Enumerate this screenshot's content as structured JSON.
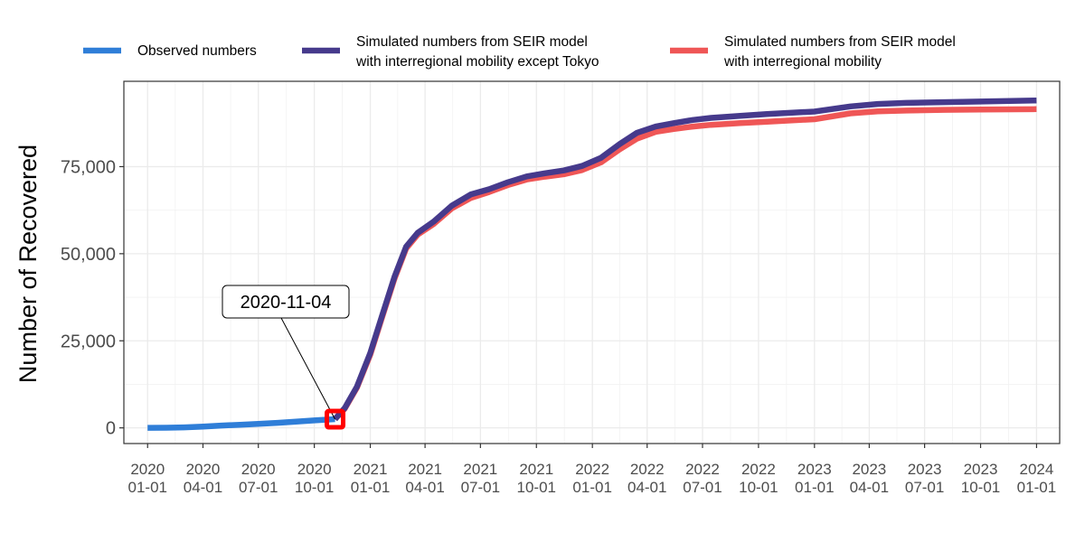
{
  "chart_data": {
    "type": "line",
    "title": "",
    "xlabel": "",
    "ylabel": "Number of Recovered",
    "ylim": [
      -4500,
      99500
    ],
    "xlim": [
      "2019-11-23",
      "2024-02-08"
    ],
    "grid": true,
    "legend_position": "top",
    "x_ticks": [
      {
        "date": "2020-01-01",
        "line1": "2020",
        "line2": "01-01"
      },
      {
        "date": "2020-04-01",
        "line1": "2020",
        "line2": "04-01"
      },
      {
        "date": "2020-07-01",
        "line1": "2020",
        "line2": "07-01"
      },
      {
        "date": "2020-10-01",
        "line1": "2020",
        "line2": "10-01"
      },
      {
        "date": "2021-01-01",
        "line1": "2021",
        "line2": "01-01"
      },
      {
        "date": "2021-04-01",
        "line1": "2021",
        "line2": "04-01"
      },
      {
        "date": "2021-07-01",
        "line1": "2021",
        "line2": "07-01"
      },
      {
        "date": "2021-10-01",
        "line1": "2021",
        "line2": "10-01"
      },
      {
        "date": "2022-01-01",
        "line1": "2022",
        "line2": "01-01"
      },
      {
        "date": "2022-04-01",
        "line1": "2022",
        "line2": "04-01"
      },
      {
        "date": "2022-07-01",
        "line1": "2022",
        "line2": "07-01"
      },
      {
        "date": "2022-10-01",
        "line1": "2022",
        "line2": "10-01"
      },
      {
        "date": "2023-01-01",
        "line1": "2023",
        "line2": "01-01"
      },
      {
        "date": "2023-04-01",
        "line1": "2023",
        "line2": "04-01"
      },
      {
        "date": "2023-07-01",
        "line1": "2023",
        "line2": "07-01"
      },
      {
        "date": "2023-10-01",
        "line1": "2023",
        "line2": "10-01"
      },
      {
        "date": "2024-01-01",
        "line1": "2024",
        "line2": "01-01"
      }
    ],
    "y_ticks": [
      {
        "value": 0,
        "label": "0"
      },
      {
        "value": 25000,
        "label": "25,000"
      },
      {
        "value": 50000,
        "label": "50,000"
      },
      {
        "value": 75000,
        "label": "75,000"
      }
    ],
    "series": [
      {
        "name": "Observed numbers",
        "color": "#2f7ed8",
        "points": [
          [
            "2020-01-01",
            0
          ],
          [
            "2020-02-01",
            30
          ],
          [
            "2020-03-01",
            150
          ],
          [
            "2020-04-01",
            350
          ],
          [
            "2020-05-01",
            650
          ],
          [
            "2020-06-01",
            900
          ],
          [
            "2020-07-01",
            1150
          ],
          [
            "2020-08-01",
            1450
          ],
          [
            "2020-09-01",
            1800
          ],
          [
            "2020-10-01",
            2150
          ],
          [
            "2020-11-04",
            2500
          ]
        ]
      },
      {
        "name": "Simulated numbers from SEIR model with interregional mobility",
        "color": "#ef5656",
        "points": [
          [
            "2020-11-04",
            2500
          ],
          [
            "2020-11-20",
            5500
          ],
          [
            "2020-12-10",
            11500
          ],
          [
            "2021-01-01",
            21000
          ],
          [
            "2021-01-20",
            31500
          ],
          [
            "2021-02-10",
            43000
          ],
          [
            "2021-03-01",
            51500
          ],
          [
            "2021-03-20",
            55500
          ],
          [
            "2021-04-15",
            58500
          ],
          [
            "2021-05-15",
            63000
          ],
          [
            "2021-06-15",
            66000
          ],
          [
            "2021-07-15",
            67700
          ],
          [
            "2021-08-15",
            69700
          ],
          [
            "2021-09-15",
            71300
          ],
          [
            "2021-10-15",
            72100
          ],
          [
            "2021-11-15",
            72800
          ],
          [
            "2021-12-15",
            74000
          ],
          [
            "2022-01-15",
            76200
          ],
          [
            "2022-02-15",
            80000
          ],
          [
            "2022-03-15",
            83000
          ],
          [
            "2022-04-15",
            85000
          ],
          [
            "2022-05-15",
            85800
          ],
          [
            "2022-06-15",
            86500
          ],
          [
            "2022-07-15",
            87000
          ],
          [
            "2022-09-01",
            87500
          ],
          [
            "2022-10-15",
            87900
          ],
          [
            "2023-01-01",
            88600
          ],
          [
            "2023-03-01",
            90300
          ],
          [
            "2023-04-15",
            90900
          ],
          [
            "2023-06-01",
            91100
          ],
          [
            "2023-08-01",
            91300
          ],
          [
            "2023-10-01",
            91400
          ],
          [
            "2024-01-01",
            91500
          ]
        ]
      },
      {
        "name": "Simulated numbers from SEIR model with interregional mobility except Tokyo",
        "color": "#463a8c",
        "points": [
          [
            "2020-11-04",
            2500
          ],
          [
            "2020-11-20",
            5700
          ],
          [
            "2020-12-10",
            11800
          ],
          [
            "2021-01-01",
            21500
          ],
          [
            "2021-01-20",
            32000
          ],
          [
            "2021-02-10",
            43500
          ],
          [
            "2021-03-01",
            52000
          ],
          [
            "2021-03-20",
            56000
          ],
          [
            "2021-04-15",
            59200
          ],
          [
            "2021-05-15",
            63800
          ],
          [
            "2021-06-15",
            67000
          ],
          [
            "2021-07-15",
            68500
          ],
          [
            "2021-08-15",
            70500
          ],
          [
            "2021-09-15",
            72200
          ],
          [
            "2021-10-15",
            73100
          ],
          [
            "2021-11-15",
            73900
          ],
          [
            "2021-12-15",
            75200
          ],
          [
            "2022-01-15",
            77500
          ],
          [
            "2022-02-15",
            81500
          ],
          [
            "2022-03-15",
            84700
          ],
          [
            "2022-04-15",
            86500
          ],
          [
            "2022-05-15",
            87500
          ],
          [
            "2022-06-15",
            88400
          ],
          [
            "2022-07-15",
            89000
          ],
          [
            "2022-09-01",
            89600
          ],
          [
            "2022-10-15",
            90100
          ],
          [
            "2023-01-01",
            90800
          ],
          [
            "2023-03-01",
            92300
          ],
          [
            "2023-04-15",
            93000
          ],
          [
            "2023-06-01",
            93300
          ],
          [
            "2023-08-01",
            93500
          ],
          [
            "2023-10-01",
            93700
          ],
          [
            "2024-01-01",
            94000
          ]
        ]
      }
    ],
    "legend": [
      {
        "name": "Observed numbers",
        "line1": "Observed numbers",
        "line2": "",
        "color": "#2f7ed8"
      },
      {
        "name": "Simulated numbers from SEIR model with interregional mobility except Tokyo",
        "line1": "Simulated numbers from SEIR model",
        "line2": "with interregional mobility except Tokyo",
        "color": "#463a8c"
      },
      {
        "name": "Simulated numbers from SEIR model with interregional mobility",
        "line1": "Simulated numbers from SEIR model",
        "line2": "with interregional mobility",
        "color": "#ef5656"
      }
    ],
    "annotation": {
      "label": "2020-11-04",
      "date": "2020-11-04",
      "value": 2500,
      "marker_color": "#ff0000"
    }
  }
}
